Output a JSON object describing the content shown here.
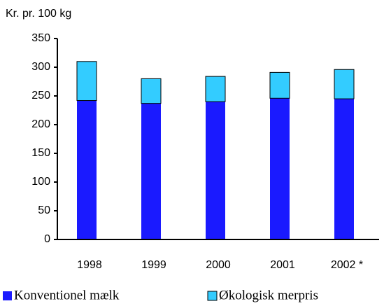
{
  "chart_data": {
    "type": "stacked_bar",
    "y_label": "Kr. pr. 100 kg",
    "categories": [
      "1998",
      "1999",
      "2000",
      "2001",
      "2002 *"
    ],
    "series": [
      {
        "name": "Konventionel mælk",
        "color": "#1a1aff",
        "values": [
          242,
          237,
          240,
          246,
          245
        ]
      },
      {
        "name": "Økologisk merpris",
        "color": "#33ccff",
        "values": [
          68,
          43,
          44,
          45,
          51
        ]
      }
    ],
    "ylim": [
      0,
      350
    ],
    "yticks": [
      0,
      50,
      100,
      150,
      200,
      250,
      300,
      350
    ]
  }
}
